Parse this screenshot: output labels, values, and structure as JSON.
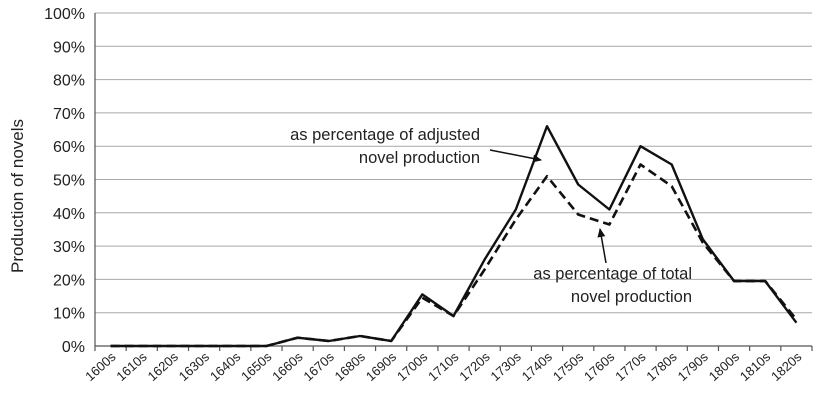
{
  "chart_data": {
    "type": "line",
    "ylabel": "Production of novels",
    "xlabel": "",
    "categories": [
      "1600s",
      "1610s",
      "1620s",
      "1630s",
      "1640s",
      "1650s",
      "1660s",
      "1670s",
      "1680s",
      "1690s",
      "1700s",
      "1710s",
      "1720s",
      "1730s",
      "1740s",
      "1750s",
      "1760s",
      "1770s",
      "1780s",
      "1790s",
      "1800s",
      "1810s",
      "1820s"
    ],
    "ylim": [
      0,
      100
    ],
    "yticks": [
      "0%",
      "10%",
      "20%",
      "30%",
      "40%",
      "50%",
      "60%",
      "70%",
      "80%",
      "90%",
      "100%"
    ],
    "grid": true,
    "series": [
      {
        "name": "as percentage of adjusted novel production",
        "style": "solid",
        "color": "#111111",
        "values": [
          0,
          0,
          0,
          0,
          0,
          0,
          2.5,
          1.5,
          3,
          1.5,
          15.5,
          9,
          26,
          41,
          66,
          48.5,
          41,
          60,
          54.5,
          32,
          19.5,
          19.5,
          7
        ]
      },
      {
        "name": "as percentage of total novel production",
        "style": "dashed",
        "color": "#111111",
        "values": [
          0,
          0,
          0,
          0,
          0,
          0,
          2.5,
          1.5,
          3,
          1.5,
          14.5,
          9,
          23,
          38,
          51,
          39.5,
          36.5,
          54.5,
          48,
          31,
          19.5,
          19.5,
          8
        ]
      }
    ],
    "annotations": [
      {
        "lines": [
          "as percentage of adjusted",
          "novel production"
        ]
      },
      {
        "lines": [
          "as percentage of total",
          "novel production"
        ]
      }
    ]
  }
}
